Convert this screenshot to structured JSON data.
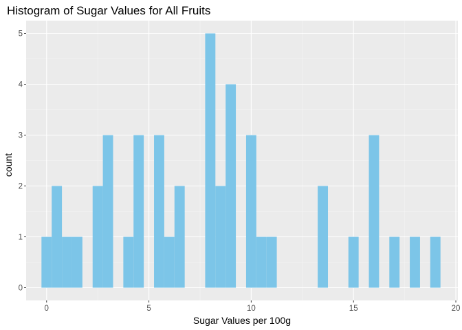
{
  "chart_data": {
    "type": "bar",
    "title": "Histogram of Sugar Values for All Fruits",
    "xlabel": "Sugar Values per 100g",
    "ylabel": "count",
    "xlim": [
      -1.0,
      20.1
    ],
    "ylim": [
      -0.25,
      5.25
    ],
    "x_ticks": [
      0,
      5,
      10,
      15,
      20
    ],
    "y_ticks": [
      0,
      1,
      2,
      3,
      4,
      5
    ],
    "bin_width": 0.5,
    "bins": [
      {
        "x": 0.0,
        "count": 1
      },
      {
        "x": 0.5,
        "count": 2
      },
      {
        "x": 1.0,
        "count": 1
      },
      {
        "x": 1.5,
        "count": 1
      },
      {
        "x": 2.5,
        "count": 2
      },
      {
        "x": 3.0,
        "count": 3
      },
      {
        "x": 4.0,
        "count": 1
      },
      {
        "x": 4.5,
        "count": 3
      },
      {
        "x": 5.5,
        "count": 3
      },
      {
        "x": 6.0,
        "count": 1
      },
      {
        "x": 6.5,
        "count": 2
      },
      {
        "x": 8.0,
        "count": 5
      },
      {
        "x": 8.5,
        "count": 2
      },
      {
        "x": 9.0,
        "count": 4
      },
      {
        "x": 10.0,
        "count": 3
      },
      {
        "x": 10.5,
        "count": 1
      },
      {
        "x": 11.0,
        "count": 1
      },
      {
        "x": 13.5,
        "count": 2
      },
      {
        "x": 15.0,
        "count": 1
      },
      {
        "x": 16.0,
        "count": 3
      },
      {
        "x": 17.0,
        "count": 1
      },
      {
        "x": 18.0,
        "count": 1
      },
      {
        "x": 19.0,
        "count": 1
      }
    ],
    "grid": true,
    "colors": {
      "bar": "#7CC5E8",
      "panel": "#EBEBEB",
      "grid_major": "#FFFFFF",
      "grid_minor": "#F5F5F5",
      "tick_text": "#4D4D4D",
      "tick_mark": "#333333"
    }
  }
}
